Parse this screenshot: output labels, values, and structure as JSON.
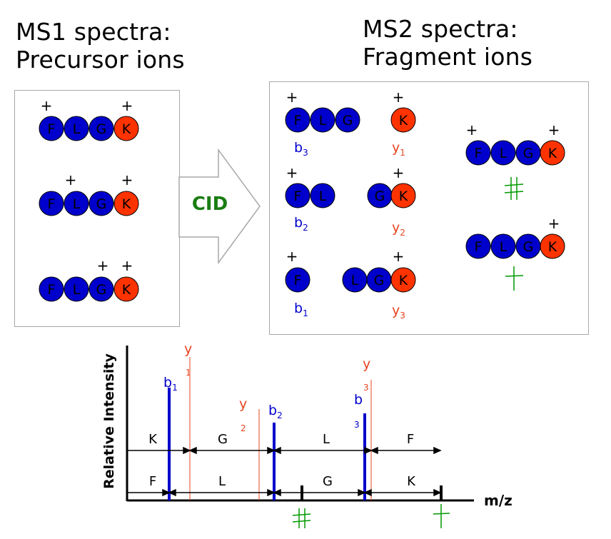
{
  "headings": {
    "ms1_line1": "MS1 spectra:",
    "ms1_line2": "Precursor ions",
    "ms2_line1": "MS2 spectra:",
    "ms2_line2": "Fragment ions"
  },
  "cid_label": "CID",
  "colors": {
    "residue_blue": "#0000cc",
    "residue_red": "#ff3300",
    "blue_label": "#0000cc",
    "red_label": "#e84420",
    "green": "#009900",
    "cid_green": "#1a7d12",
    "box_border": "#a8a8a8"
  },
  "ms1_peptides": [
    {
      "residues": [
        "F",
        "L",
        "G",
        "K"
      ],
      "charges": [
        "+",
        "+"
      ]
    },
    {
      "residues": [
        "F",
        "L",
        "G",
        "K"
      ],
      "charges": [
        "+",
        "+"
      ]
    },
    {
      "residues": [
        "F",
        "L",
        "G",
        "K"
      ],
      "charges": [
        "+",
        "+"
      ]
    }
  ],
  "ms2_fragments": {
    "b3": {
      "residues": [
        "F",
        "L",
        "G"
      ],
      "charge": "+",
      "label": "b",
      "sub": "3"
    },
    "y1": {
      "residues": [
        "K"
      ],
      "charge": "+",
      "label": "y",
      "sub": "1"
    },
    "b2": {
      "residues": [
        "F",
        "L"
      ],
      "charge": "+",
      "label": "b",
      "sub": "2"
    },
    "y2": {
      "residues": [
        "G",
        "K"
      ],
      "charge": "+",
      "label": "y",
      "sub": "2"
    },
    "b1": {
      "residues": [
        "F"
      ],
      "charge": "+",
      "label": "b",
      "sub": "1"
    },
    "y3": {
      "residues": [
        "L",
        "G",
        "K"
      ],
      "charge": "+",
      "label": "y",
      "sub": "3"
    },
    "side_top": {
      "residues": [
        "F",
        "L",
        "G",
        "K"
      ],
      "charges": [
        "+",
        "+"
      ],
      "mark": "double-cross"
    },
    "side_bottom": {
      "residues": [
        "F",
        "L",
        "G",
        "K"
      ],
      "charges": [
        "+"
      ],
      "mark": "single-cross"
    }
  },
  "spectrum": {
    "y_axis_label": "Relative Intensity",
    "x_axis_label": "m/z",
    "peak_labels": {
      "b1": {
        "main": "b",
        "sub": "1"
      },
      "y1": {
        "main": "y",
        "sub": "1"
      },
      "y2": {
        "main": "y",
        "sub": "2"
      },
      "b2": {
        "main": "b",
        "sub": "2"
      },
      "b3": {
        "main": "b",
        "sub": "3"
      },
      "y3": {
        "main": "y",
        "sub": "3"
      }
    },
    "upper_gaps": [
      "K",
      "G",
      "L",
      "F"
    ],
    "lower_gaps": [
      "F",
      "L",
      "G",
      "K"
    ]
  }
}
